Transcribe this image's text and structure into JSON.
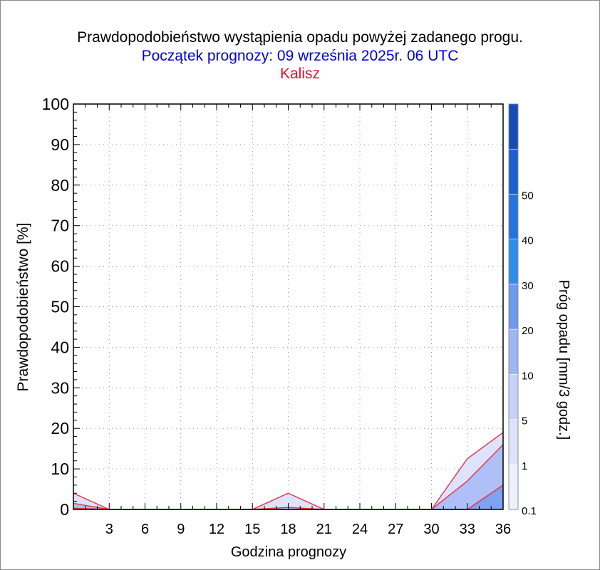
{
  "title": "Prawdopodobieństwo wystąpienia opadu powyżej zadanego progu.",
  "subtitle": "Początek prognozy: 09 września 2025r. 06 UTC",
  "location": "Kalisz",
  "colors": {
    "title": "#000000",
    "subtitle": "#0000dd",
    "location": "#e8102a",
    "series_line": "#e8304a",
    "grid": "#9a9a9a"
  },
  "chart_data": {
    "type": "area",
    "title": "Prawdopodobieństwo wystąpienia opadu powyżej zadanego progu.",
    "xlabel": "Godzina prognozy",
    "ylabel": "Prawdopodobieństwo [%]",
    "x": [
      0,
      3,
      6,
      9,
      12,
      15,
      18,
      21,
      24,
      27,
      30,
      33,
      36
    ],
    "xlim": [
      0,
      36
    ],
    "ylim": [
      0,
      100
    ],
    "x_ticks": [
      3,
      6,
      9,
      12,
      15,
      18,
      21,
      24,
      27,
      30,
      33,
      36
    ],
    "y_ticks": [
      0,
      10,
      20,
      30,
      40,
      50,
      60,
      70,
      80,
      90,
      100
    ],
    "grid": true,
    "series": [
      {
        "threshold": "0.1",
        "color": "#dde3fb",
        "values": [
          4,
          0,
          0,
          0,
          0,
          0,
          4,
          0,
          0,
          0,
          0,
          12.5,
          19
        ]
      },
      {
        "threshold": "1",
        "color": "#aec0f7",
        "values": [
          1.5,
          0,
          0,
          0,
          0,
          0,
          0.5,
          0,
          0,
          0,
          0,
          7,
          16
        ]
      },
      {
        "threshold": "5",
        "color": "#7fa3f2",
        "values": [
          0.3,
          0,
          0,
          0,
          0,
          0,
          0,
          0,
          0,
          0,
          0,
          0,
          6
        ]
      }
    ],
    "colorbar": {
      "label": "Próg opadu [mm/3 godz.]",
      "tick_labels": [
        "0.1",
        "1",
        "5",
        "10",
        "20",
        "30",
        "40",
        "50"
      ],
      "colors": [
        "#eef1fd",
        "#dde3fb",
        "#c5d2fa",
        "#9db6f4",
        "#6f99ef",
        "#2e8eeb",
        "#2474e0",
        "#1c5fd3",
        "#164cb8"
      ]
    }
  }
}
